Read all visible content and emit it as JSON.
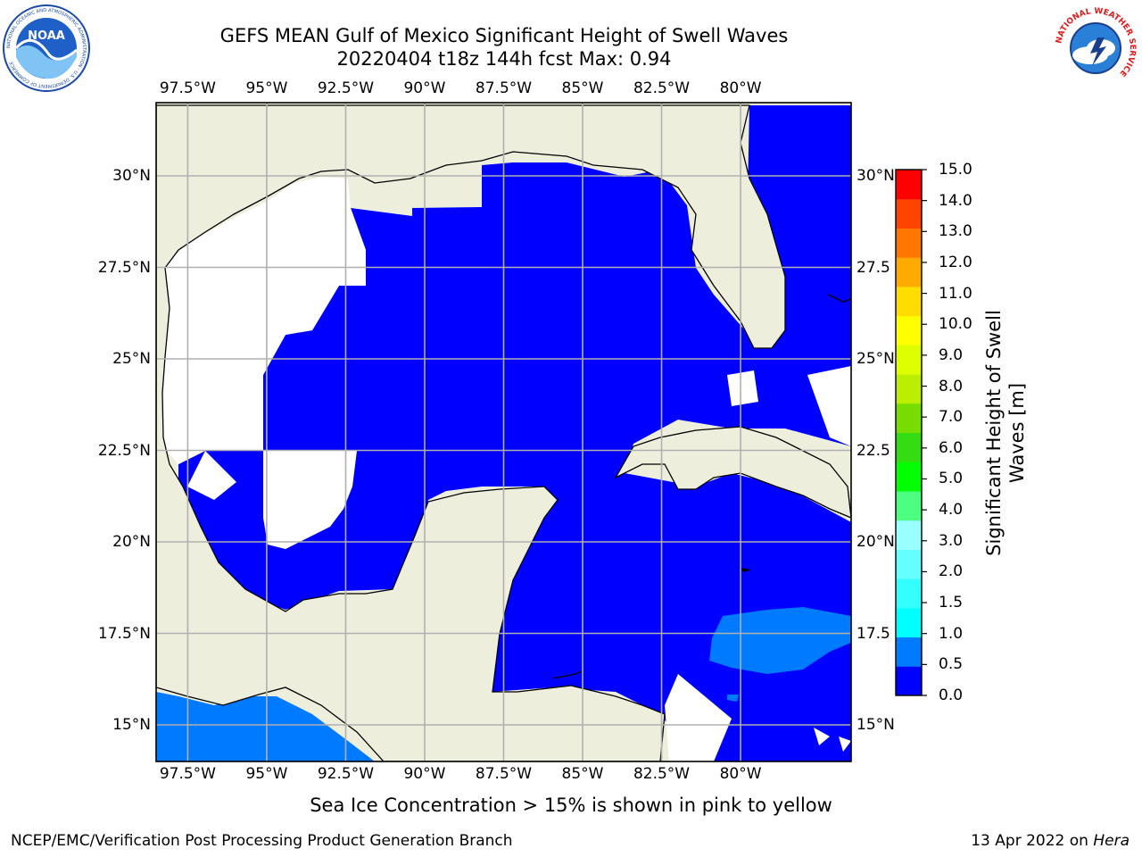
{
  "header": {
    "title_line1": "GEFS MEAN Gulf of Mexico Significant Height of Swell Waves",
    "title_line2": "20220404 t18z 144h fcst   Max: 0.94"
  },
  "logos": {
    "left": "NOAA",
    "left_ring_text": "NATIONAL OCEANIC AND ATMOSPHERIC ADMINISTRATION · U.S. DEPARTMENT OF COMMERCE",
    "right_ring_text": "NATIONAL WEATHER SERVICE"
  },
  "map": {
    "lon_range": [
      -98.5,
      -76.5
    ],
    "lat_range": [
      14,
      32
    ],
    "lon_ticks": [
      "97.5°W",
      "95°W",
      "92.5°W",
      "90°W",
      "87.5°W",
      "85°W",
      "82.5°W",
      "80°W"
    ],
    "lon_values": [
      -97.5,
      -95,
      -92.5,
      -90,
      -87.5,
      -85,
      -82.5,
      -80
    ],
    "lat_ticks": [
      "30°N",
      "27.5°N",
      "25°N",
      "22.5°N",
      "20°N",
      "17.5°N",
      "15°N"
    ],
    "lat_ticks_right": [
      "30°N",
      "27.5",
      "25°N",
      "22.5",
      "20°N",
      "17.5",
      "15°N"
    ],
    "lat_values": [
      30,
      27.5,
      25,
      22.5,
      20,
      17.5,
      15
    ],
    "land_color": "#eeeedd",
    "ocean_color": "#0000ff",
    "swell_05_1_color": "#007bff",
    "grid_color": "#b0b0b0"
  },
  "colorbar": {
    "label": "Significant Height of Swell Waves [m]",
    "levels": [
      "0.0",
      "0.5",
      "1.0",
      "1.5",
      "2.0",
      "3.0",
      "4.0",
      "5.0",
      "6.0",
      "7.0",
      "8.0",
      "9.0",
      "10.0",
      "11.0",
      "12.0",
      "13.0",
      "14.0",
      "15.0"
    ],
    "colors": [
      "#0000ff",
      "#007bff",
      "#00ffff",
      "#33ffff",
      "#66ffff",
      "#99ffff",
      "#4cff80",
      "#00ff00",
      "#33dd11",
      "#77dd00",
      "#bbee00",
      "#ddff00",
      "#ffff00",
      "#ffdd00",
      "#ffaa00",
      "#ff7700",
      "#ff4400",
      "#ff0000"
    ]
  },
  "note": "Sea Ice Concentration > 15% is shown in pink to yellow",
  "footer": {
    "left": "NCEP/EMC/Verification Post Processing Product Generation Branch",
    "right_prefix": "13 Apr 2022 on ",
    "right_host": "Hera"
  }
}
